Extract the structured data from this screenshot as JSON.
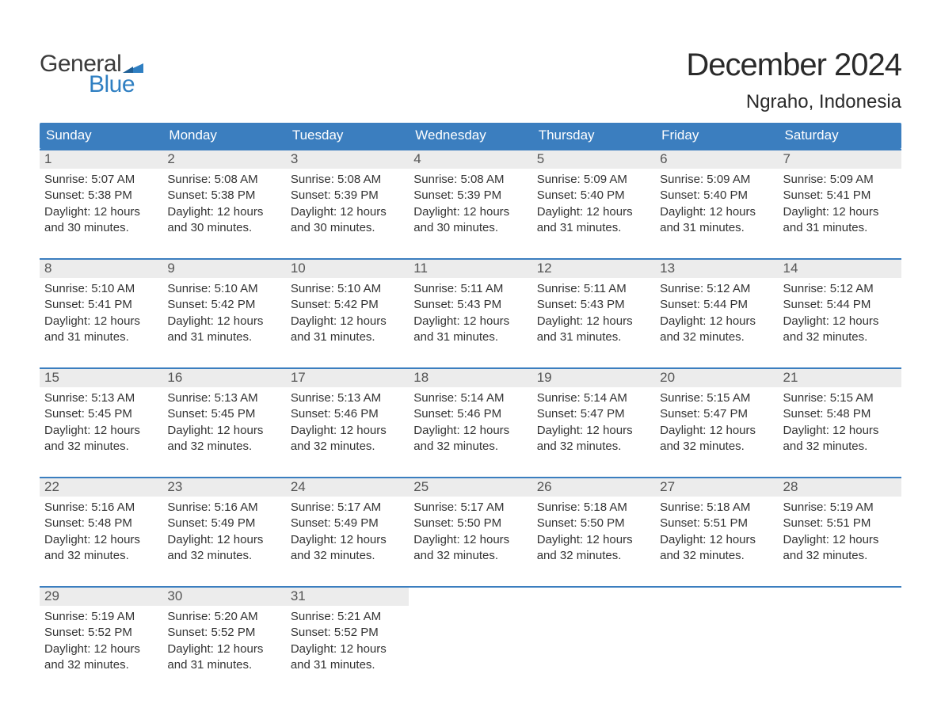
{
  "brand": {
    "word1": "General",
    "word2": "Blue",
    "text_color_word1": "#3b3b3b",
    "text_color_word2": "#2f7fc2",
    "flag_color": "#2f7fc2"
  },
  "title": {
    "month_year": "December 2024",
    "location": "Ngraho, Indonesia",
    "month_fontsize": 40,
    "location_fontsize": 24,
    "text_color": "#2a2a2a"
  },
  "styling": {
    "header_bg": "#3b7ebf",
    "header_text_color": "#ffffff",
    "header_fontsize": 17,
    "week_border_color": "#3b7ebf",
    "daynum_bg": "#ececec",
    "daynum_color": "#555555",
    "daynum_fontsize": 17,
    "body_fontsize": 15,
    "body_text_color": "#333333",
    "page_bg": "#ffffff",
    "columns": 7
  },
  "days_of_week": [
    "Sunday",
    "Monday",
    "Tuesday",
    "Wednesday",
    "Thursday",
    "Friday",
    "Saturday"
  ],
  "labels": {
    "sunrise_prefix": "Sunrise: ",
    "sunset_prefix": "Sunset: ",
    "daylight_prefix": "Daylight: ",
    "daylight_join": " and ",
    "daylight_suffix": "."
  },
  "weeks": [
    [
      {
        "n": "1",
        "sunrise": "5:07 AM",
        "sunset": "5:38 PM",
        "dl_h": "12 hours",
        "dl_m": "30 minutes"
      },
      {
        "n": "2",
        "sunrise": "5:08 AM",
        "sunset": "5:38 PM",
        "dl_h": "12 hours",
        "dl_m": "30 minutes"
      },
      {
        "n": "3",
        "sunrise": "5:08 AM",
        "sunset": "5:39 PM",
        "dl_h": "12 hours",
        "dl_m": "30 minutes"
      },
      {
        "n": "4",
        "sunrise": "5:08 AM",
        "sunset": "5:39 PM",
        "dl_h": "12 hours",
        "dl_m": "30 minutes"
      },
      {
        "n": "5",
        "sunrise": "5:09 AM",
        "sunset": "5:40 PM",
        "dl_h": "12 hours",
        "dl_m": "31 minutes"
      },
      {
        "n": "6",
        "sunrise": "5:09 AM",
        "sunset": "5:40 PM",
        "dl_h": "12 hours",
        "dl_m": "31 minutes"
      },
      {
        "n": "7",
        "sunrise": "5:09 AM",
        "sunset": "5:41 PM",
        "dl_h": "12 hours",
        "dl_m": "31 minutes"
      }
    ],
    [
      {
        "n": "8",
        "sunrise": "5:10 AM",
        "sunset": "5:41 PM",
        "dl_h": "12 hours",
        "dl_m": "31 minutes"
      },
      {
        "n": "9",
        "sunrise": "5:10 AM",
        "sunset": "5:42 PM",
        "dl_h": "12 hours",
        "dl_m": "31 minutes"
      },
      {
        "n": "10",
        "sunrise": "5:10 AM",
        "sunset": "5:42 PM",
        "dl_h": "12 hours",
        "dl_m": "31 minutes"
      },
      {
        "n": "11",
        "sunrise": "5:11 AM",
        "sunset": "5:43 PM",
        "dl_h": "12 hours",
        "dl_m": "31 minutes"
      },
      {
        "n": "12",
        "sunrise": "5:11 AM",
        "sunset": "5:43 PM",
        "dl_h": "12 hours",
        "dl_m": "31 minutes"
      },
      {
        "n": "13",
        "sunrise": "5:12 AM",
        "sunset": "5:44 PM",
        "dl_h": "12 hours",
        "dl_m": "32 minutes"
      },
      {
        "n": "14",
        "sunrise": "5:12 AM",
        "sunset": "5:44 PM",
        "dl_h": "12 hours",
        "dl_m": "32 minutes"
      }
    ],
    [
      {
        "n": "15",
        "sunrise": "5:13 AM",
        "sunset": "5:45 PM",
        "dl_h": "12 hours",
        "dl_m": "32 minutes"
      },
      {
        "n": "16",
        "sunrise": "5:13 AM",
        "sunset": "5:45 PM",
        "dl_h": "12 hours",
        "dl_m": "32 minutes"
      },
      {
        "n": "17",
        "sunrise": "5:13 AM",
        "sunset": "5:46 PM",
        "dl_h": "12 hours",
        "dl_m": "32 minutes"
      },
      {
        "n": "18",
        "sunrise": "5:14 AM",
        "sunset": "5:46 PM",
        "dl_h": "12 hours",
        "dl_m": "32 minutes"
      },
      {
        "n": "19",
        "sunrise": "5:14 AM",
        "sunset": "5:47 PM",
        "dl_h": "12 hours",
        "dl_m": "32 minutes"
      },
      {
        "n": "20",
        "sunrise": "5:15 AM",
        "sunset": "5:47 PM",
        "dl_h": "12 hours",
        "dl_m": "32 minutes"
      },
      {
        "n": "21",
        "sunrise": "5:15 AM",
        "sunset": "5:48 PM",
        "dl_h": "12 hours",
        "dl_m": "32 minutes"
      }
    ],
    [
      {
        "n": "22",
        "sunrise": "5:16 AM",
        "sunset": "5:48 PM",
        "dl_h": "12 hours",
        "dl_m": "32 minutes"
      },
      {
        "n": "23",
        "sunrise": "5:16 AM",
        "sunset": "5:49 PM",
        "dl_h": "12 hours",
        "dl_m": "32 minutes"
      },
      {
        "n": "24",
        "sunrise": "5:17 AM",
        "sunset": "5:49 PM",
        "dl_h": "12 hours",
        "dl_m": "32 minutes"
      },
      {
        "n": "25",
        "sunrise": "5:17 AM",
        "sunset": "5:50 PM",
        "dl_h": "12 hours",
        "dl_m": "32 minutes"
      },
      {
        "n": "26",
        "sunrise": "5:18 AM",
        "sunset": "5:50 PM",
        "dl_h": "12 hours",
        "dl_m": "32 minutes"
      },
      {
        "n": "27",
        "sunrise": "5:18 AM",
        "sunset": "5:51 PM",
        "dl_h": "12 hours",
        "dl_m": "32 minutes"
      },
      {
        "n": "28",
        "sunrise": "5:19 AM",
        "sunset": "5:51 PM",
        "dl_h": "12 hours",
        "dl_m": "32 minutes"
      }
    ],
    [
      {
        "n": "29",
        "sunrise": "5:19 AM",
        "sunset": "5:52 PM",
        "dl_h": "12 hours",
        "dl_m": "32 minutes"
      },
      {
        "n": "30",
        "sunrise": "5:20 AM",
        "sunset": "5:52 PM",
        "dl_h": "12 hours",
        "dl_m": "31 minutes"
      },
      {
        "n": "31",
        "sunrise": "5:21 AM",
        "sunset": "5:52 PM",
        "dl_h": "12 hours",
        "dl_m": "31 minutes"
      },
      null,
      null,
      null,
      null
    ]
  ]
}
